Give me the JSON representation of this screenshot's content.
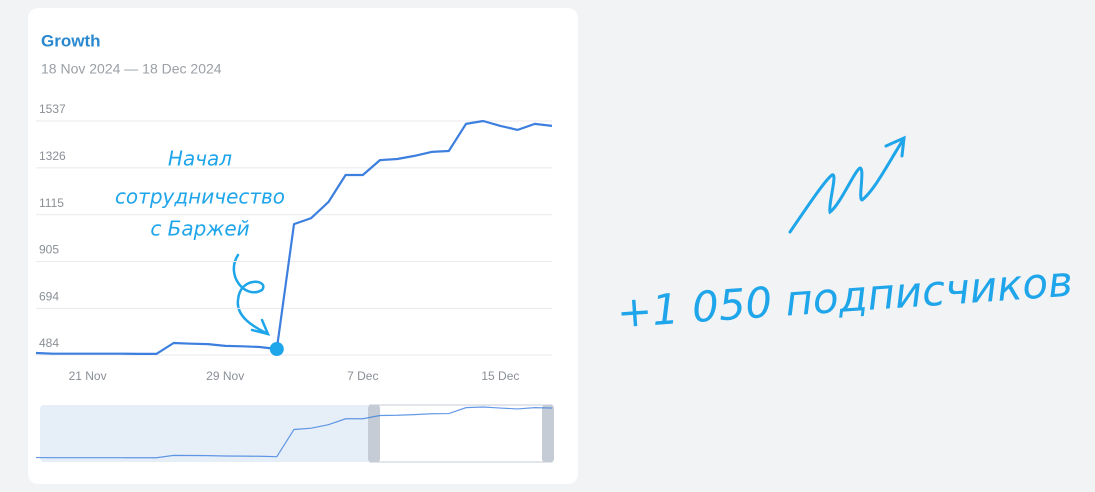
{
  "chart_data": {
    "type": "line",
    "title": "Growth",
    "subtitle": "18 Nov 2024 — 18 Dec 2024",
    "categories": [
      null,
      null,
      null,
      "21 Nov",
      null,
      null,
      null,
      null,
      null,
      null,
      null,
      "29 Nov",
      null,
      null,
      null,
      null,
      null,
      null,
      null,
      "7 Dec",
      null,
      null,
      null,
      null,
      null,
      null,
      null,
      "15 Dec",
      null,
      null,
      null
    ],
    "series": [
      {
        "color": "#3d7fde",
        "values": [
          493,
          490,
          490,
          490,
          490,
          490,
          489,
          489,
          538,
          535,
          533,
          525,
          523,
          520,
          511,
          1073,
          1100,
          1172,
          1294,
          1294,
          1361,
          1366,
          1380,
          1398,
          1402,
          1524,
          1537,
          1515,
          1497,
          1524,
          1515
        ]
      }
    ],
    "ylim": [
      484,
      1537
    ],
    "yticks": [
      484,
      694,
      905,
      1115,
      1326,
      1537
    ],
    "grid": true,
    "annotations": [
      {
        "lines": [
          "Начал",
          "сотрудничество",
          "с Баржей"
        ],
        "point": 14
      },
      {
        "lines": [
          "+1 050 подписчиков"
        ]
      }
    ]
  }
}
